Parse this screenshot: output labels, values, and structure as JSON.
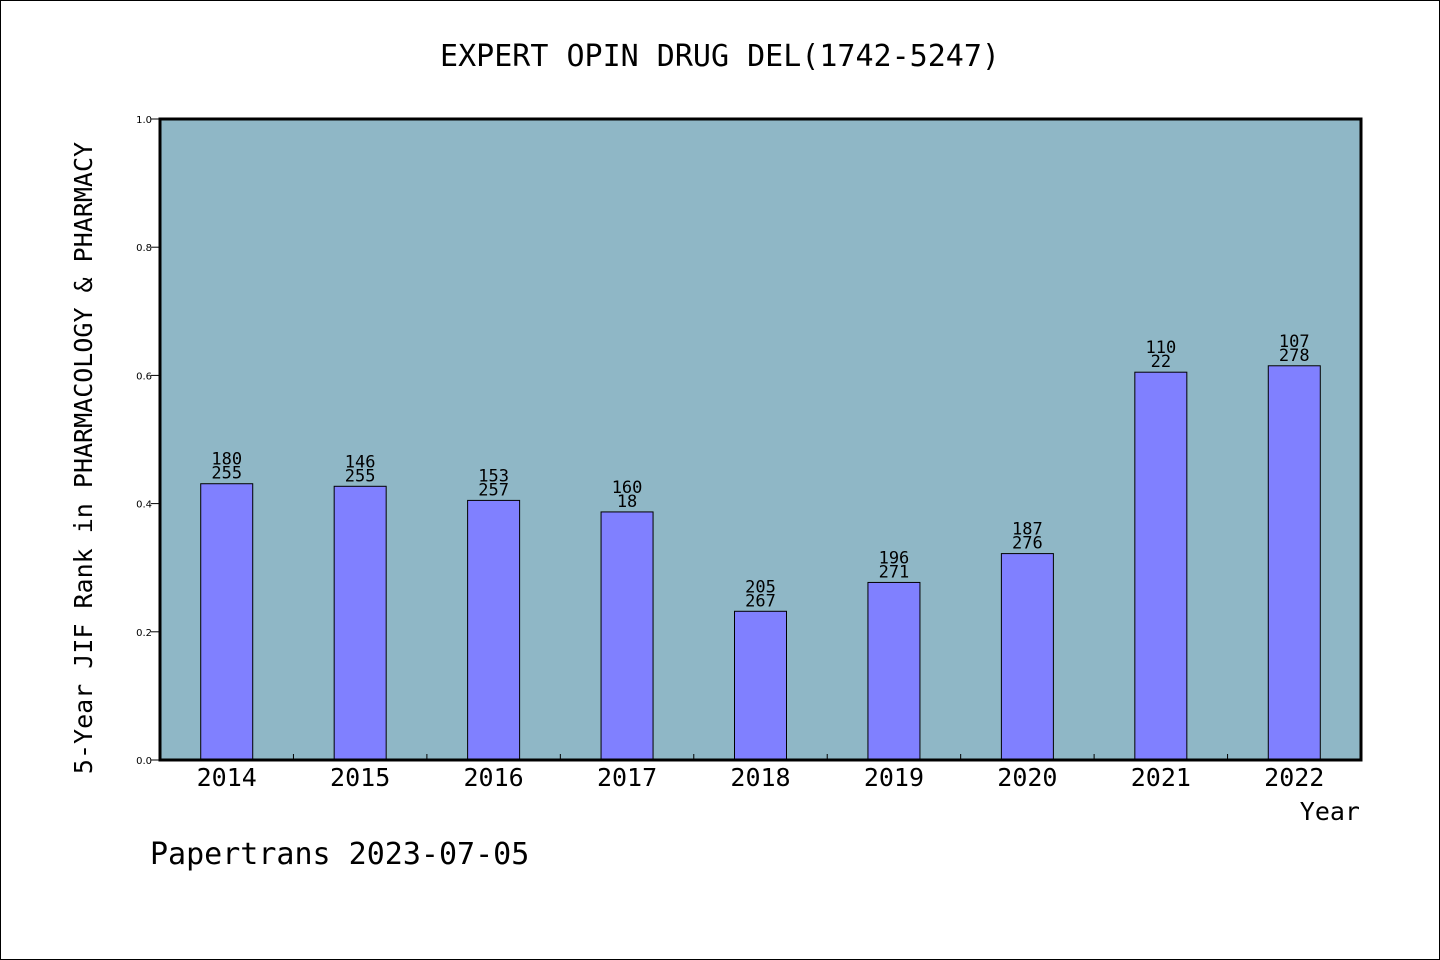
{
  "chart_data": {
    "type": "bar",
    "title": "EXPERT OPIN DRUG DEL(1742-5247)",
    "xlabel": "Year",
    "ylabel": "5-Year JIF Rank in PHARMACOLOGY & PHARMACY",
    "ylim": [
      0,
      1.0
    ],
    "yticks": [
      "0.0",
      "0.2",
      "0.4",
      "0.6",
      "0.8",
      "1.0"
    ],
    "categories": [
      "2014",
      "2015",
      "2016",
      "2017",
      "2018",
      "2019",
      "2020",
      "2021",
      "2022"
    ],
    "values": [
      0.431,
      0.427,
      0.405,
      0.387,
      0.232,
      0.277,
      0.322,
      0.605,
      0.615
    ],
    "bar_labels": [
      [
        "180",
        "255"
      ],
      [
        "146",
        "255"
      ],
      [
        "153",
        "257"
      ],
      [
        "160",
        "18"
      ],
      [
        "205",
        "267"
      ],
      [
        "196",
        "271"
      ],
      [
        "187",
        "276"
      ],
      [
        "110",
        "22"
      ],
      [
        "107",
        "278"
      ]
    ],
    "grid": false,
    "colors": {
      "plot_background": "#8fb7c6",
      "bar": "#8080ff",
      "bar_edge": "#000000"
    }
  },
  "footer": "Papertrans 2023-07-05"
}
